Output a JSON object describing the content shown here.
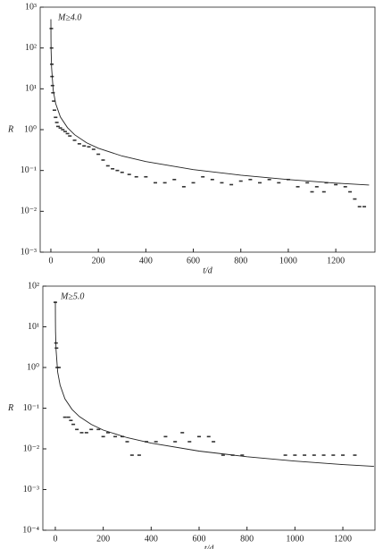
{
  "chart_data": [
    {
      "type": "scatter",
      "annotation": "M≥4.0",
      "xlabel": "t/d",
      "ylabel": "R",
      "log_y": true,
      "xlim": [
        -45,
        1365
      ],
      "xticks": [
        0,
        200,
        400,
        600,
        800,
        1000,
        1200
      ],
      "ylim": [
        0.001,
        1000
      ],
      "yticks": [
        {
          "value": 0.001,
          "label": "10⁻³"
        },
        {
          "value": 0.01,
          "label": "10⁻²"
        },
        {
          "value": 0.1,
          "label": "10⁻¹"
        },
        {
          "value": 1,
          "label": "10⁰"
        },
        {
          "value": 10,
          "label": "10¹"
        },
        {
          "value": 100,
          "label": "10²"
        },
        {
          "value": 1000,
          "label": "10³"
        }
      ],
      "series": [
        {
          "color": "#333333",
          "style": "points",
          "x": [
            2,
            3,
            4,
            5,
            7,
            9,
            12,
            15,
            20,
            25,
            30,
            40,
            50,
            60,
            70,
            80,
            100,
            120,
            140,
            160,
            180,
            200,
            220,
            240,
            260,
            280,
            300,
            330,
            360,
            400,
            440,
            480,
            520,
            560,
            600,
            640,
            680,
            720,
            760,
            800,
            840,
            880,
            920,
            960,
            1000,
            1040,
            1080,
            1100,
            1120,
            1150,
            1160,
            1200,
            1240,
            1260,
            1280,
            1300,
            1320
          ],
          "values": [
            300,
            100,
            40,
            20,
            12,
            8,
            5,
            3,
            2,
            1.5,
            1.2,
            1.1,
            1.0,
            0.9,
            0.8,
            0.7,
            0.55,
            0.45,
            0.4,
            0.38,
            0.33,
            0.25,
            0.18,
            0.13,
            0.11,
            0.1,
            0.09,
            0.08,
            0.07,
            0.07,
            0.05,
            0.05,
            0.06,
            0.04,
            0.05,
            0.07,
            0.06,
            0.05,
            0.045,
            0.055,
            0.06,
            0.05,
            0.06,
            0.05,
            0.06,
            0.04,
            0.05,
            0.03,
            0.04,
            0.03,
            0.05,
            0.045,
            0.04,
            0.03,
            0.02,
            0.013,
            0.013
          ]
        },
        {
          "color": "#222222",
          "style": "line",
          "x": [
            0,
            0.5,
            1,
            3,
            10,
            20,
            40,
            70,
            100,
            150,
            200,
            300,
            400,
            600,
            800,
            1000,
            1200,
            1340
          ],
          "values": [
            506,
            160,
            92,
            32.6,
            9.2,
            4.4,
            2.05,
            1.12,
            0.75,
            0.48,
            0.35,
            0.226,
            0.165,
            0.105,
            0.077,
            0.06,
            0.049,
            0.044
          ]
        }
      ]
    },
    {
      "type": "scatter",
      "annotation": "M≥5.0",
      "xlabel": "t/d",
      "ylabel": "R",
      "log_y": true,
      "xlim": [
        -52,
        1334
      ],
      "xticks": [
        0,
        200,
        400,
        600,
        800,
        1000,
        1200
      ],
      "ylim": [
        0.0001,
        100
      ],
      "yticks": [
        {
          "value": 0.0001,
          "label": "10⁻⁴"
        },
        {
          "value": 0.001,
          "label": "10⁻³"
        },
        {
          "value": 0.01,
          "label": "10⁻²"
        },
        {
          "value": 0.1,
          "label": "10⁻¹"
        },
        {
          "value": 1,
          "label": "10⁰"
        },
        {
          "value": 10,
          "label": "10¹"
        },
        {
          "value": 100,
          "label": "10²"
        }
      ],
      "series": [
        {
          "color": "#333333",
          "style": "points",
          "x": [
            0,
            3,
            5,
            8,
            15,
            40,
            55,
            65,
            75,
            90,
            110,
            130,
            150,
            180,
            200,
            220,
            250,
            280,
            300,
            320,
            350,
            380,
            420,
            460,
            500,
            530,
            560,
            600,
            640,
            660,
            700,
            740,
            780,
            960,
            1000,
            1040,
            1080,
            1120,
            1160,
            1200,
            1250
          ],
          "values": [
            40,
            4,
            3,
            1,
            1,
            0.06,
            0.06,
            0.05,
            0.04,
            0.03,
            0.025,
            0.025,
            0.03,
            0.03,
            0.02,
            0.025,
            0.02,
            0.02,
            0.015,
            0.007,
            0.007,
            0.015,
            0.015,
            0.02,
            0.015,
            0.025,
            0.015,
            0.02,
            0.02,
            0.015,
            0.007,
            0.007,
            0.007,
            0.007,
            0.007,
            0.007,
            0.007,
            0.007,
            0.007,
            0.007,
            0.007
          ]
        },
        {
          "color": "#222222",
          "style": "line",
          "x": [
            0,
            0.5,
            1,
            3,
            10,
            20,
            40,
            70,
            100,
            150,
            200,
            300,
            400,
            600,
            800,
            1000,
            1200,
            1330
          ],
          "values": [
            42,
            13.3,
            7.7,
            2.7,
            0.77,
            0.37,
            0.17,
            0.093,
            0.0625,
            0.04,
            0.029,
            0.0188,
            0.0138,
            0.0088,
            0.0064,
            0.005,
            0.0041,
            0.0037
          ]
        }
      ]
    }
  ]
}
